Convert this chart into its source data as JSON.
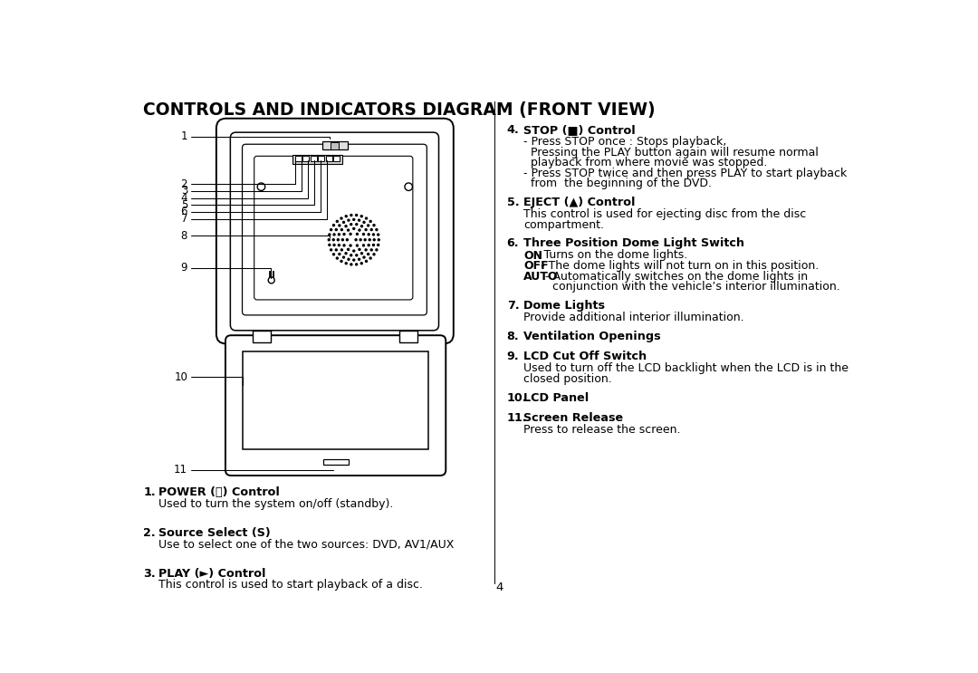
{
  "title": "CONTROLS AND INDICATORS DIAGRAM (FRONT VIEW)",
  "title_fontsize": 13.5,
  "bg_color": "#ffffff",
  "text_color": "#000000",
  "page_number": "4",
  "left_items": [
    {
      "num": "1.",
      "bold": "POWER (⏻) Control",
      "normal": "Used to turn the system on/off (standby)."
    },
    {
      "num": "2.",
      "bold": "Source Select (S)",
      "normal": "Use to select one of the two sources: DVD, AV1/AUX"
    },
    {
      "num": "3.",
      "bold": "PLAY (►) Control",
      "normal": "This control is used to start playback of a disc."
    }
  ],
  "right_items": [
    {
      "num": "4.",
      "bold": "STOP (■) Control",
      "lines": [
        {
          "text": "- Press STOP once : Stops playback,",
          "bold_prefix": ""
        },
        {
          "text": "  Pressing the PLAY button again will resume normal",
          "bold_prefix": ""
        },
        {
          "text": "  playback from where movie was stopped.",
          "bold_prefix": ""
        },
        {
          "text": "- Press STOP twice and then press PLAY to start playback",
          "bold_prefix": ""
        },
        {
          "text": "  from  the beginning of the DVD.",
          "bold_prefix": ""
        }
      ]
    },
    {
      "num": "5.",
      "bold": "EJECT (▲) Control",
      "lines": [
        {
          "text": "This control is used for ejecting disc from the disc",
          "bold_prefix": ""
        },
        {
          "text": "compartment.",
          "bold_prefix": ""
        }
      ]
    },
    {
      "num": "6.",
      "bold": "Three Position Dome Light Switch",
      "lines": [
        {
          "text": " - Turns on the dome lights.",
          "bold_prefix": "ON"
        },
        {
          "text": " - The dome lights will not turn on in this position.",
          "bold_prefix": "OFF"
        },
        {
          "text": " - Automatically switches on the dome lights in",
          "bold_prefix": "AUTO"
        },
        {
          "text": "        conjunction with the vehicle’s interior illumination.",
          "bold_prefix": ""
        }
      ]
    },
    {
      "num": "7.",
      "bold": "Dome Lights",
      "lines": [
        {
          "text": "Provide additional interior illumination.",
          "bold_prefix": ""
        }
      ]
    },
    {
      "num": "8.",
      "bold": "Ventilation Openings",
      "lines": []
    },
    {
      "num": "9.",
      "bold": "LCD Cut Off Switch",
      "lines": [
        {
          "text": "Used to turn off the LCD backlight when the LCD is in the",
          "bold_prefix": ""
        },
        {
          "text": "closed position.",
          "bold_prefix": ""
        }
      ]
    },
    {
      "num": "10.",
      "bold": "LCD Panel",
      "lines": []
    },
    {
      "num": "11.",
      "bold": "Screen Release",
      "lines": [
        {
          "text": "Press to release the screen.",
          "bold_prefix": ""
        }
      ]
    }
  ]
}
